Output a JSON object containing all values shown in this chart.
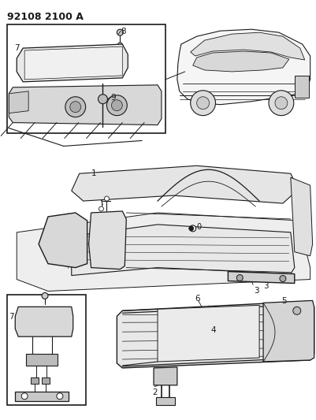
{
  "title": "92108 2100 A",
  "bg_color": "#ffffff",
  "line_color": "#1a1a1a",
  "fig_width": 4.02,
  "fig_height": 5.33,
  "dpi": 100
}
